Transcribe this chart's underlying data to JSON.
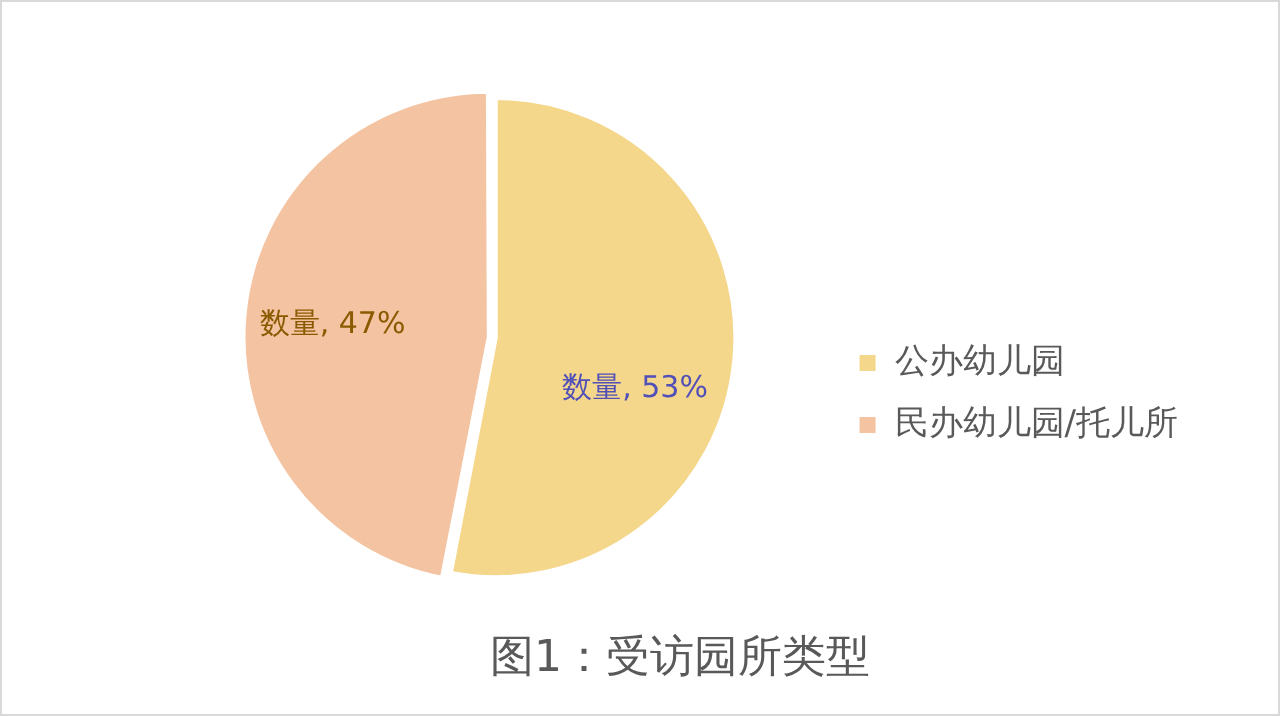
{
  "chart_data": {
    "type": "pie",
    "title": "图1：受访园所类型",
    "categories": [
      "公办幼儿园",
      "民办幼儿园/托儿所"
    ],
    "values": [
      53,
      47
    ],
    "colors": [
      "#f5d78c",
      "#f4c3a1"
    ],
    "value_labels": [
      "数量, 53%",
      "数量, 47%"
    ],
    "legend": "right"
  }
}
